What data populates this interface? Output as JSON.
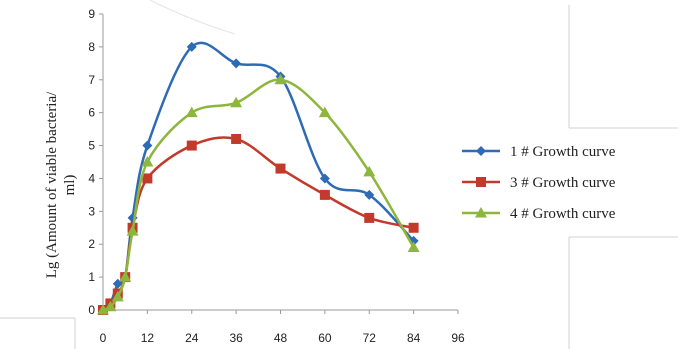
{
  "chart_data": {
    "type": "line",
    "title": "",
    "xlabel": "",
    "ylabel_lines": [
      "Lg (Amount of viable bacteria/",
      "ml)"
    ],
    "x_ticks": [
      0,
      12,
      24,
      36,
      48,
      60,
      72,
      84,
      96
    ],
    "y_ticks": [
      0,
      1,
      2,
      3,
      4,
      5,
      6,
      7,
      8,
      9
    ],
    "xlim": [
      0,
      96
    ],
    "ylim": [
      0,
      9
    ],
    "grid": false,
    "legend_position": "right",
    "series": [
      {
        "name": "1 # Growth curve",
        "color": "#2e6bb5",
        "marker": "diamond",
        "x": [
          0,
          2,
          4,
          6,
          8,
          12,
          24,
          36,
          48,
          60,
          72,
          84
        ],
        "y": [
          0,
          0.2,
          0.8,
          1,
          2.8,
          5,
          8,
          7.5,
          7.1,
          4,
          3.5,
          2.1
        ]
      },
      {
        "name": "3 # Growth curve",
        "color": "#c23a2b",
        "marker": "square",
        "x": [
          0,
          2,
          4,
          6,
          8,
          12,
          24,
          36,
          48,
          60,
          72,
          84
        ],
        "y": [
          0,
          0.2,
          0.5,
          1,
          2.5,
          4,
          5,
          5.2,
          4.3,
          3.5,
          2.8,
          2.5
        ]
      },
      {
        "name": "4 # Growth curve",
        "color": "#8db63c",
        "marker": "triangle",
        "x": [
          0,
          2,
          4,
          6,
          8,
          12,
          24,
          36,
          48,
          60,
          72,
          84
        ],
        "y": [
          0,
          0.1,
          0.4,
          1,
          2.4,
          4.5,
          6,
          6.3,
          7,
          6,
          4.2,
          1.9
        ]
      }
    ]
  }
}
